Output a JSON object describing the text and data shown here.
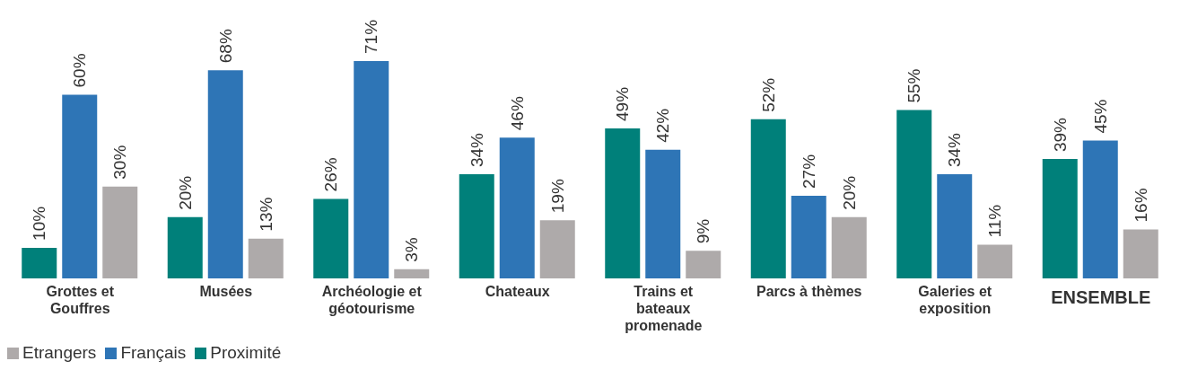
{
  "chart_data": {
    "type": "bar",
    "categories": [
      "Grottes et Gouffres",
      "Musées",
      "Archéologie et géotourisme",
      "Chateaux",
      "Trains et bateaux promenade",
      "Parcs à thèmes",
      "Galeries et exposition",
      "ENSEMBLE"
    ],
    "series": [
      {
        "name": "Proximité",
        "color": "#00807a",
        "values": [
          10,
          20,
          26,
          34,
          49,
          52,
          55,
          39
        ],
        "value_labels": [
          "10%",
          "20%",
          "26%",
          "34%",
          "49%",
          "52%",
          "55%",
          "39%"
        ]
      },
      {
        "name": "Français",
        "color": "#2e75b6",
        "values": [
          60,
          68,
          71,
          46,
          42,
          27,
          34,
          45
        ],
        "value_labels": [
          "60%",
          "68%",
          "71%",
          "46%",
          "42%",
          "27%",
          "34%",
          "45%"
        ]
      },
      {
        "name": "Etrangers",
        "color": "#aeaaaa",
        "values": [
          30,
          13,
          3,
          19,
          9,
          20,
          11,
          16
        ],
        "value_labels": [
          "30%",
          "13%",
          "3%",
          "19%",
          "9%",
          "20%",
          "11%",
          "16%"
        ]
      }
    ],
    "legend": "bottom left",
    "grid": false
  }
}
